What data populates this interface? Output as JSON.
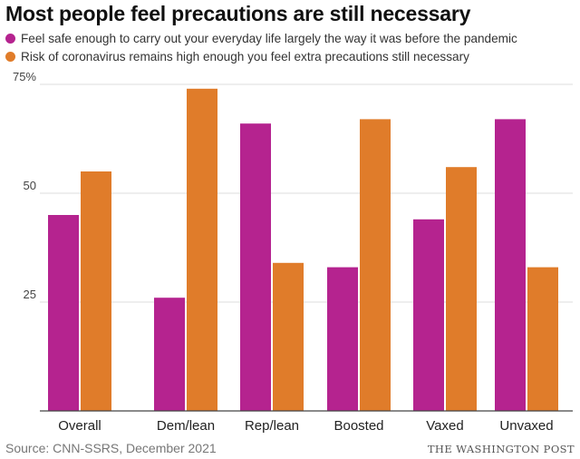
{
  "title": "Most people feel precautions are still necessary",
  "source": "Source: CNN-SSRS, December 2021",
  "credit": "THE WASHINGTON POST",
  "colors": {
    "feel_safe": "#B5238F",
    "precautions": "#E07C2A",
    "axis": "#444444",
    "grid": "#dddddd"
  },
  "chart_data": {
    "type": "bar",
    "categories": [
      "Overall",
      "Dem/lean",
      "Rep/lean",
      "Boosted",
      "Vaxed",
      "Unvaxed"
    ],
    "series": [
      {
        "name": "Feel safe enough to carry out your everyday life largely the way it was before the pandemic",
        "color": "#B5238F",
        "values": [
          45,
          26,
          66,
          33,
          44,
          67
        ]
      },
      {
        "name": "Risk of coronavirus remains high enough you feel extra precautions still necessary",
        "color": "#E07C2A",
        "values": [
          55,
          74,
          34,
          67,
          56,
          33
        ]
      }
    ],
    "yticks": [
      25,
      50,
      75
    ],
    "ytick_labels": [
      "25",
      "50",
      "75%"
    ],
    "ylim": [
      0,
      75
    ],
    "grid": true,
    "legend_placement": "top"
  }
}
